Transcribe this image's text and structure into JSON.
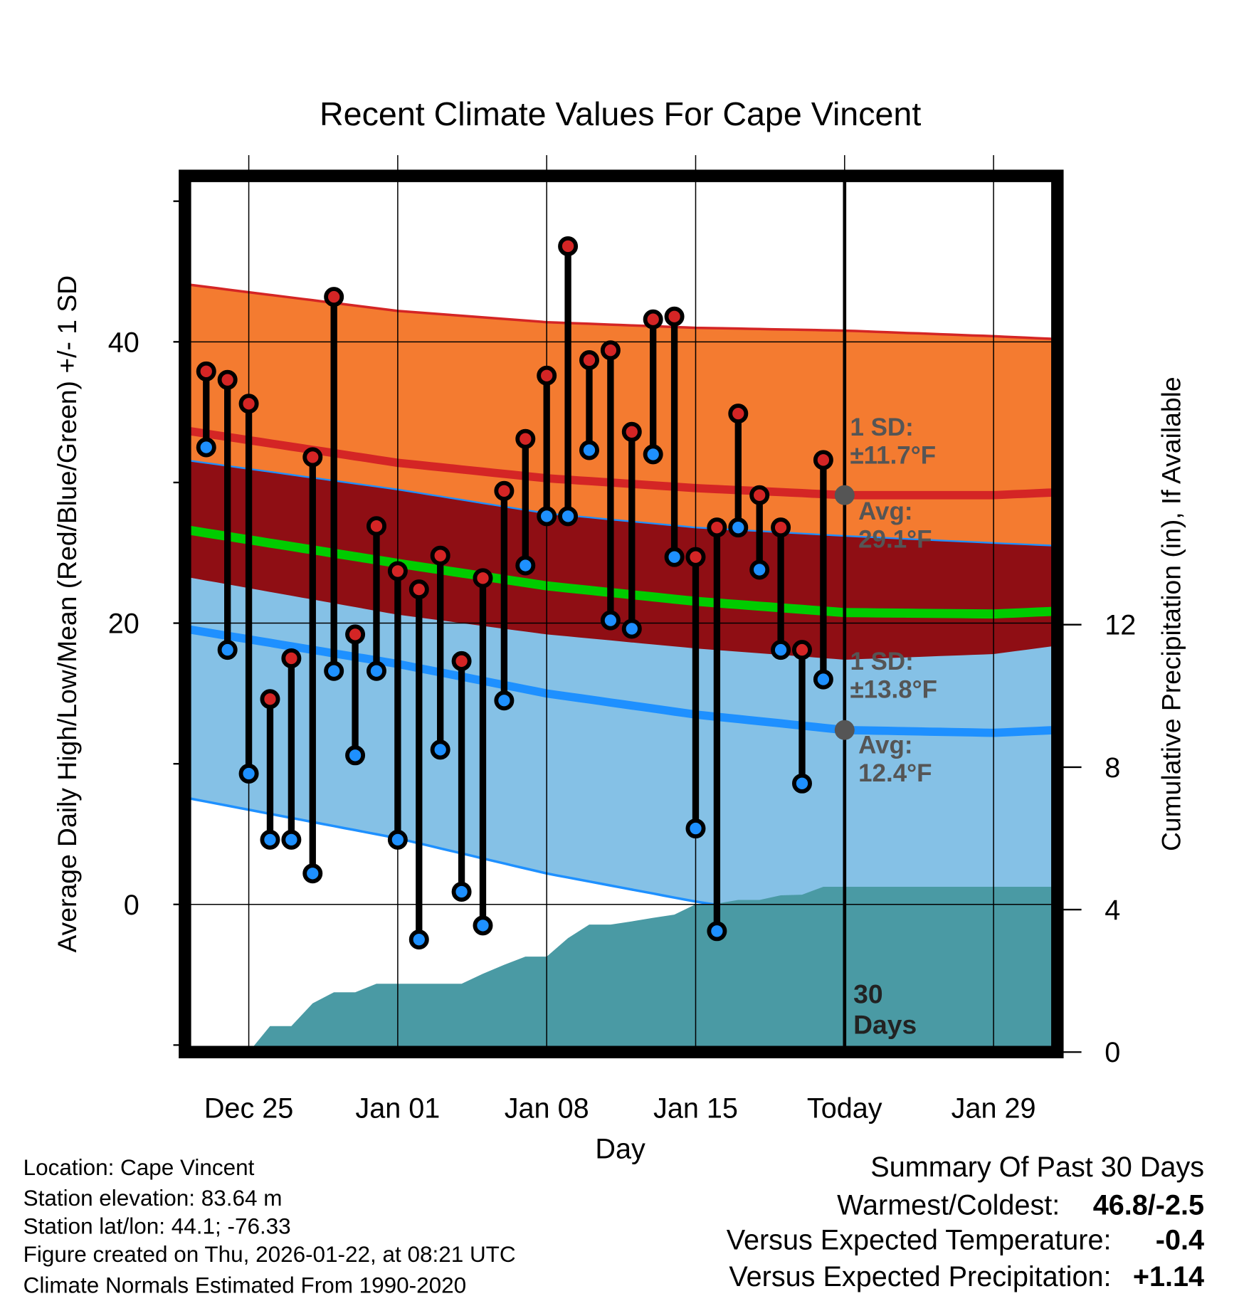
{
  "chart_data": {
    "type": "range-bar-with-bands",
    "title": "Recent Climate Values For Cape Vincent",
    "xlabel": "Day",
    "ylabel": "Average Daily High/Low/Mean (Red/Blue/Green) +/- 1 SD",
    "y2label": "Cumulative Precipitation (in), If Available",
    "x_start_date": "Dec 22",
    "x_range_days": [
      0,
      41
    ],
    "ylim": [
      -10.5,
      51.8
    ],
    "y2lim": [
      0,
      24.6
    ],
    "x_ticks": [
      {
        "day": 3,
        "label": "Dec 25"
      },
      {
        "day": 10,
        "label": "Jan 01"
      },
      {
        "day": 17,
        "label": "Jan 08"
      },
      {
        "day": 24,
        "label": "Jan 15"
      },
      {
        "day": 31,
        "label": "Today"
      },
      {
        "day": 38,
        "label": "Jan 29"
      }
    ],
    "y_ticks": [
      {
        "value": 0,
        "label": "0"
      },
      {
        "value": 20,
        "label": "20"
      },
      {
        "value": 40,
        "label": "40"
      }
    ],
    "y_minor_ticks": [
      -10,
      10,
      30,
      50
    ],
    "y2_ticks": [
      {
        "value": 0,
        "label": "0"
      },
      {
        "value": 4,
        "label": "4"
      },
      {
        "value": 8,
        "label": "8"
      },
      {
        "value": 12,
        "label": "12"
      }
    ],
    "today_day": 31,
    "daily": {
      "days": [
        1,
        2,
        3,
        4,
        5,
        6,
        7,
        8,
        9,
        10,
        11,
        12,
        13,
        14,
        15,
        16,
        17,
        18,
        19,
        20,
        21,
        22,
        23,
        24,
        25,
        26,
        27,
        28,
        29,
        30
      ],
      "high": [
        37.9,
        37.3,
        35.6,
        14.6,
        17.5,
        31.8,
        43.2,
        19.2,
        26.9,
        23.7,
        22.4,
        24.8,
        17.3,
        23.2,
        29.4,
        33.1,
        37.6,
        46.8,
        38.7,
        39.4,
        33.6,
        41.6,
        41.8,
        24.7,
        26.8,
        34.9,
        29.1,
        26.8,
        18.1,
        31.6
      ],
      "low": [
        32.5,
        18.1,
        9.3,
        4.6,
        4.6,
        2.2,
        16.6,
        10.6,
        16.6,
        4.6,
        -2.5,
        11.0,
        0.9,
        -1.5,
        14.5,
        24.1,
        27.6,
        27.6,
        32.3,
        20.2,
        19.6,
        32.0,
        24.7,
        5.4,
        -1.9,
        26.8,
        23.8,
        18.1,
        8.6,
        16.0
      ]
    },
    "normals": {
      "days": [
        0,
        10,
        17,
        24,
        31,
        38,
        41
      ],
      "high_mean": [
        33.7,
        31.4,
        30.3,
        29.6,
        29.1,
        29.1,
        29.3
      ],
      "high_sd": [
        10.4,
        10.8,
        11.1,
        11.4,
        11.7,
        11.3,
        10.9
      ],
      "low_mean": [
        19.6,
        17.1,
        15.0,
        13.5,
        12.4,
        12.2,
        12.4
      ],
      "low_sd": [
        12.0,
        12.4,
        12.8,
        13.3,
        13.8,
        13.5,
        13.1
      ]
    },
    "precip_cumulative": {
      "days": [
        0,
        1,
        2,
        3,
        4,
        5,
        6,
        7,
        8,
        9,
        10,
        11,
        12,
        13,
        14,
        15,
        16,
        17,
        18,
        19,
        20,
        21,
        22,
        23,
        24,
        25,
        26,
        27,
        28,
        29,
        30,
        41
      ],
      "values": [
        0,
        0,
        0,
        0,
        0.73,
        0.73,
        1.37,
        1.68,
        1.68,
        1.92,
        1.92,
        1.92,
        1.92,
        1.92,
        2.2,
        2.45,
        2.68,
        2.68,
        3.2,
        3.58,
        3.58,
        3.67,
        3.77,
        3.86,
        4.15,
        4.17,
        4.27,
        4.27,
        4.4,
        4.42,
        4.64,
        4.64
      ]
    },
    "annotations": {
      "high_sd": [
        "1 SD:",
        "±11.7°F"
      ],
      "high_avg": [
        "Avg:",
        "29.1°F"
      ],
      "low_sd": [
        "1 SD:",
        "±13.8°F"
      ],
      "low_avg": [
        "Avg:",
        "12.4°F"
      ],
      "window": [
        "30",
        "Days"
      ]
    },
    "colors": {
      "high_band": "#f47b30",
      "overlap_band": "#8f0e14",
      "low_band": "#85c1e6",
      "precip": "#4a9aa4",
      "high_line": "#d42525",
      "mean_line": "#00cc00",
      "low_line": "#1e90ff",
      "high_dot": "#d42525",
      "low_dot": "#1e90ff",
      "annotation": "#555555"
    }
  },
  "footer": {
    "location": "Location: Cape Vincent",
    "elevation": "Station elevation: 83.64 m",
    "latlon": "Station lat/lon: 44.1; -76.33",
    "created": "Figure created on Thu, 2026-01-22, at 08:21 UTC",
    "normals": "Climate Normals Estimated From 1990-2020"
  },
  "summary": {
    "title": "Summary Of Past 30 Days",
    "warmest_label": "Warmest/Coldest:",
    "warmest_value": "46.8/-2.5",
    "temp_label": "Versus Expected Temperature:",
    "temp_value": "-0.4",
    "temp_color": "#1e90ff",
    "precip_label": "Versus Expected Precipitation:",
    "precip_value": "+1.14",
    "precip_color": "#22bb22"
  }
}
